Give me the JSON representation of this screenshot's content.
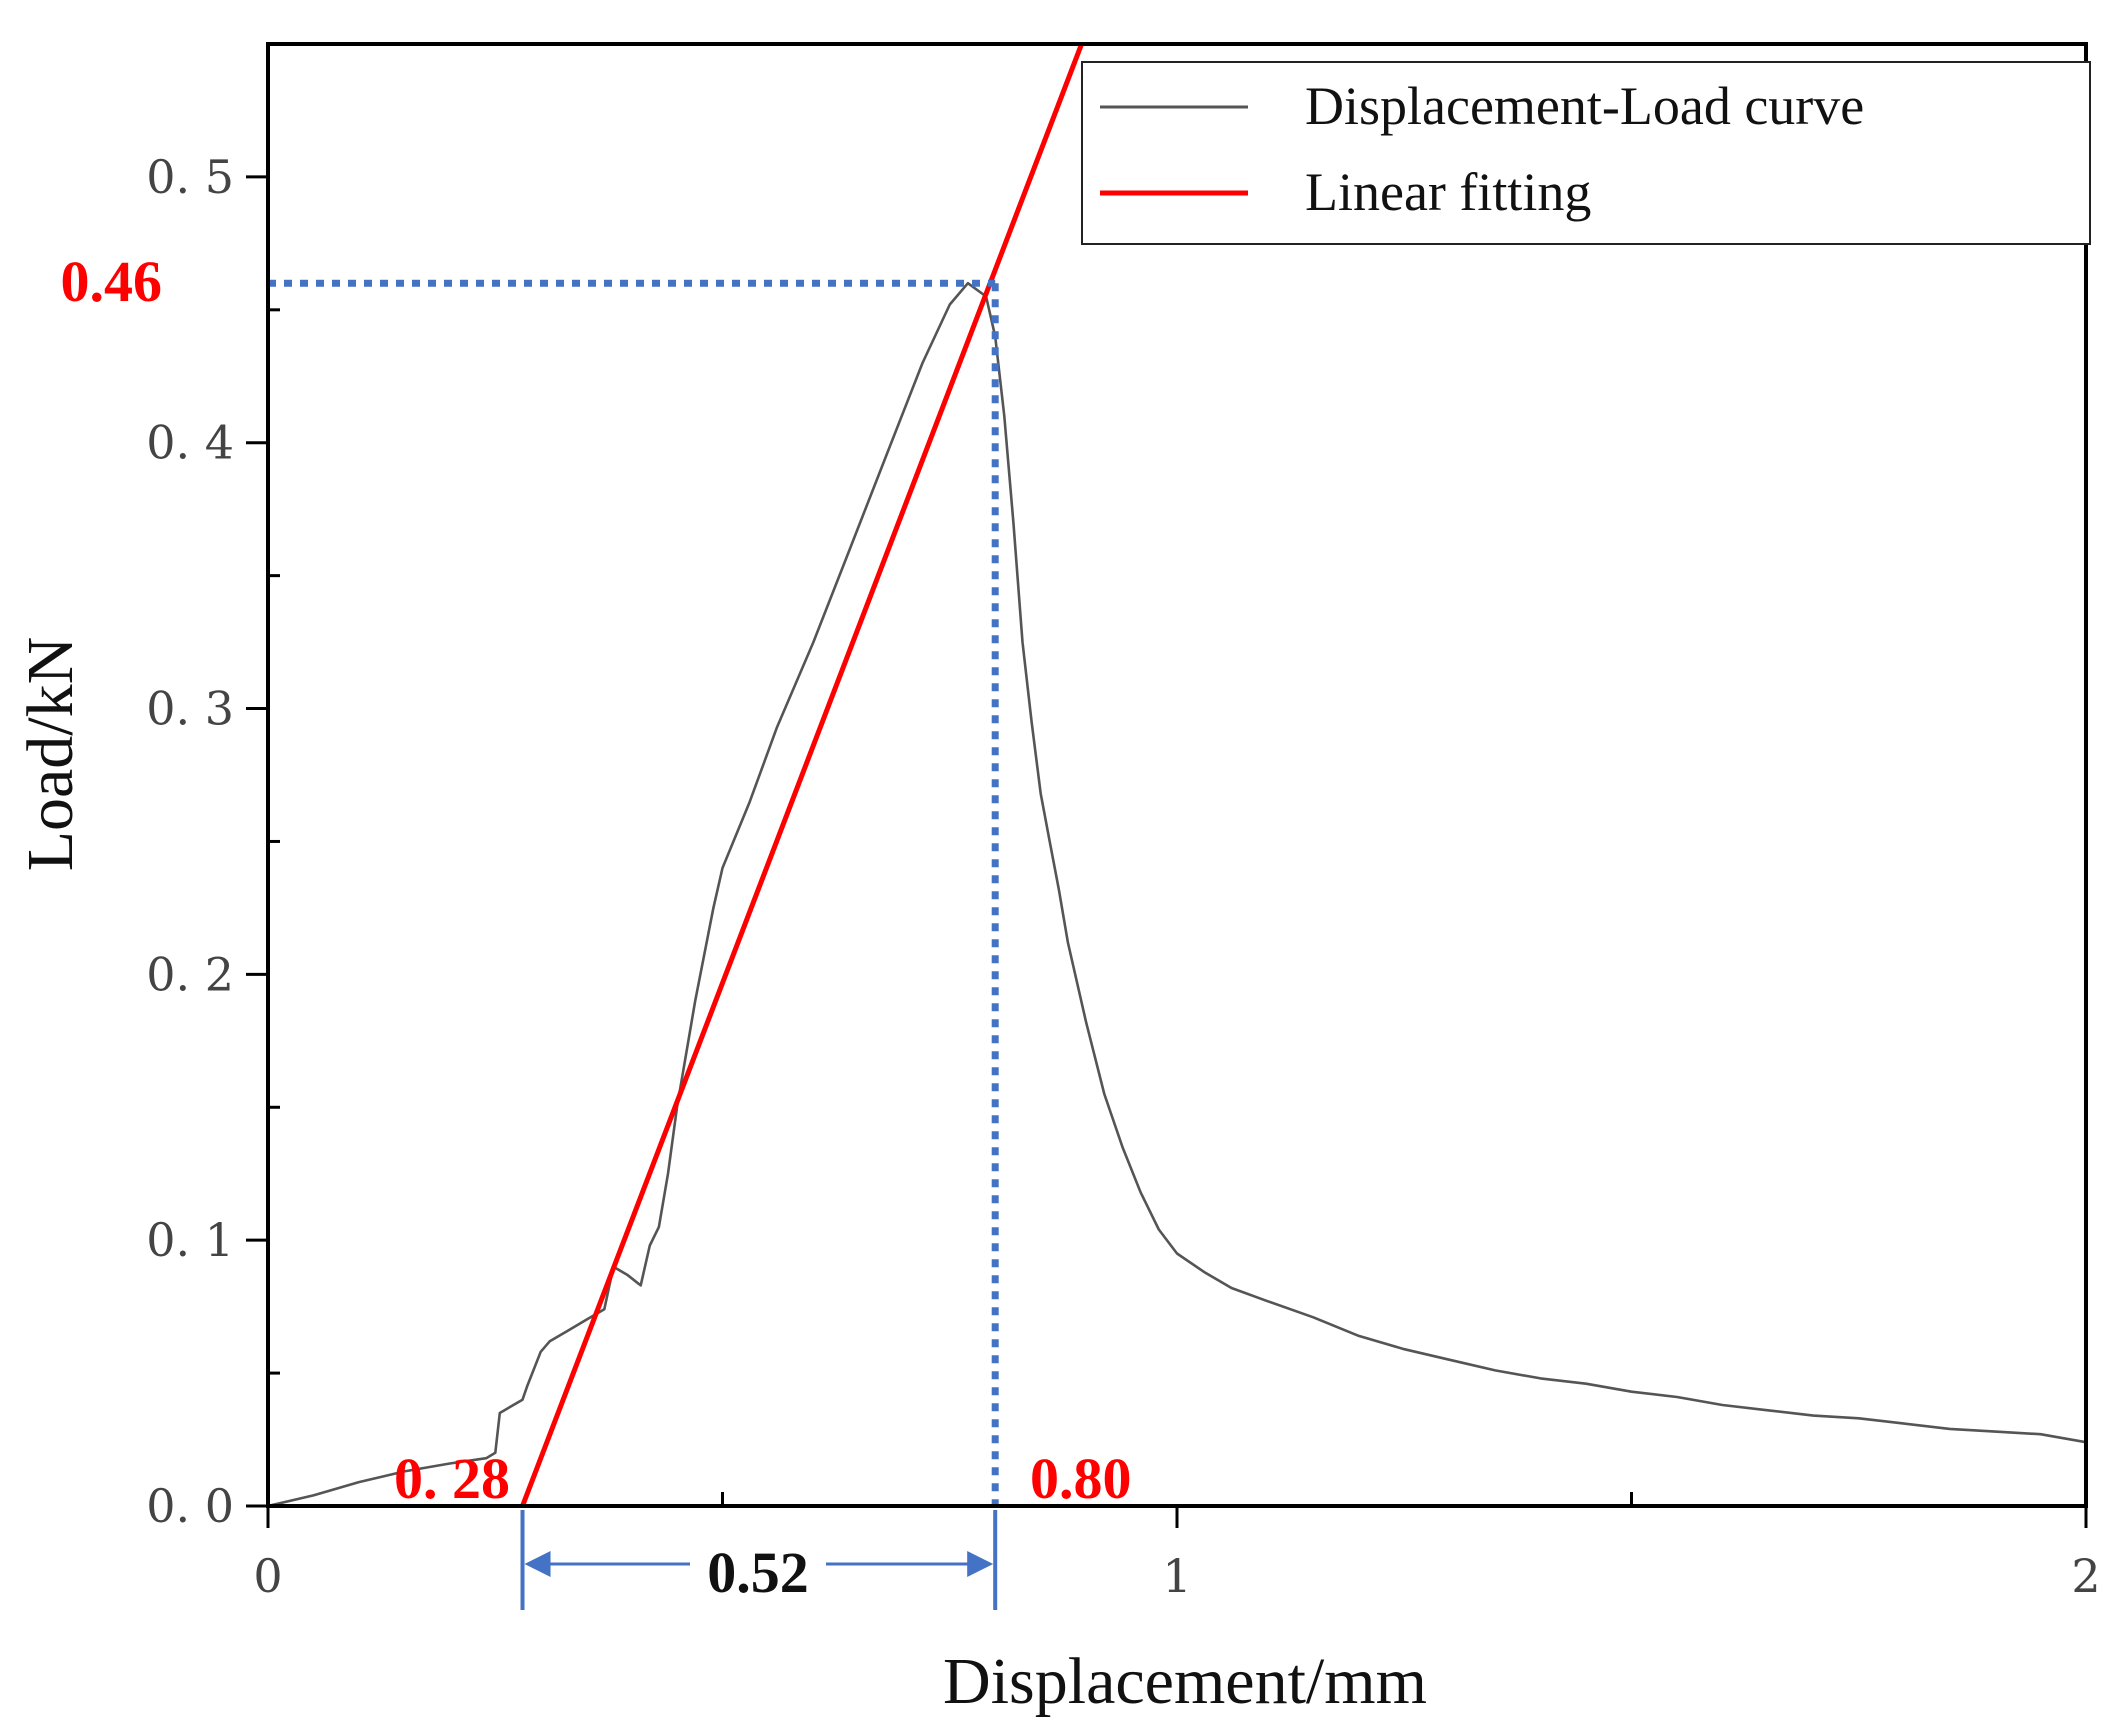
{
  "chart_data": {
    "type": "line",
    "title": "",
    "xlabel": "Displacement/mm",
    "ylabel": "Load/kN",
    "xlim": [
      0,
      2
    ],
    "ylim": [
      0,
      0.55
    ],
    "x_ticks": [
      0,
      1,
      2
    ],
    "x_tick_labels": [
      "0",
      "1",
      "2"
    ],
    "y_ticks": [
      0,
      0.1,
      0.2,
      0.3,
      0.4,
      0.5
    ],
    "y_tick_labels": [
      "0. 0",
      "0. 1",
      "0. 2",
      "0. 3",
      "0. 4",
      "0. 5"
    ],
    "grid": false,
    "legend_position": "top-right",
    "series": [
      {
        "name": "Displacement-Load curve",
        "color": "#555555",
        "x": [
          0,
          0.05,
          0.1,
          0.15,
          0.2,
          0.24,
          0.25,
          0.255,
          0.27,
          0.28,
          0.285,
          0.3,
          0.31,
          0.33,
          0.35,
          0.37,
          0.38,
          0.395,
          0.41,
          0.42,
          0.43,
          0.44,
          0.45,
          0.47,
          0.49,
          0.5,
          0.53,
          0.56,
          0.6,
          0.64,
          0.68,
          0.72,
          0.75,
          0.77,
          0.79,
          0.8,
          0.81,
          0.82,
          0.83,
          0.84,
          0.85,
          0.86,
          0.87,
          0.88,
          0.9,
          0.92,
          0.94,
          0.96,
          0.98,
          1.0,
          1.03,
          1.06,
          1.1,
          1.15,
          1.2,
          1.25,
          1.3,
          1.35,
          1.4,
          1.45,
          1.5,
          1.55,
          1.6,
          1.65,
          1.7,
          1.75,
          1.8,
          1.85,
          1.9,
          1.95,
          2.0
        ],
        "y": [
          0,
          0.004,
          0.009,
          0.013,
          0.016,
          0.018,
          0.02,
          0.035,
          0.038,
          0.04,
          0.045,
          0.058,
          0.062,
          0.066,
          0.07,
          0.074,
          0.09,
          0.087,
          0.083,
          0.098,
          0.105,
          0.125,
          0.15,
          0.19,
          0.225,
          0.24,
          0.265,
          0.293,
          0.325,
          0.36,
          0.395,
          0.43,
          0.452,
          0.46,
          0.455,
          0.44,
          0.41,
          0.37,
          0.325,
          0.295,
          0.268,
          0.25,
          0.232,
          0.212,
          0.182,
          0.155,
          0.135,
          0.118,
          0.104,
          0.095,
          0.088,
          0.082,
          0.077,
          0.071,
          0.064,
          0.059,
          0.055,
          0.051,
          0.048,
          0.046,
          0.043,
          0.041,
          0.038,
          0.036,
          0.034,
          0.033,
          0.031,
          0.029,
          0.028,
          0.027,
          0.024
        ]
      },
      {
        "name": "Linear fitting",
        "color": "#ff0000",
        "x": [
          0.28,
          0.895
        ],
        "y": [
          0,
          0.55
        ]
      }
    ],
    "annotations": {
      "peak_load": {
        "text": "0.46",
        "value": 0.46
      },
      "fit_intercept": {
        "text": "0. 28",
        "value": 0.28
      },
      "peak_displacement": {
        "text": "0.80",
        "value": 0.8
      },
      "span": {
        "text": "0.52",
        "from": 0.28,
        "to": 0.8
      }
    },
    "colors": {
      "axis": "#000000",
      "curve": "#555555",
      "fit": "#ff0000",
      "guide": "#4472c4",
      "annotation": "#ff0000"
    }
  }
}
